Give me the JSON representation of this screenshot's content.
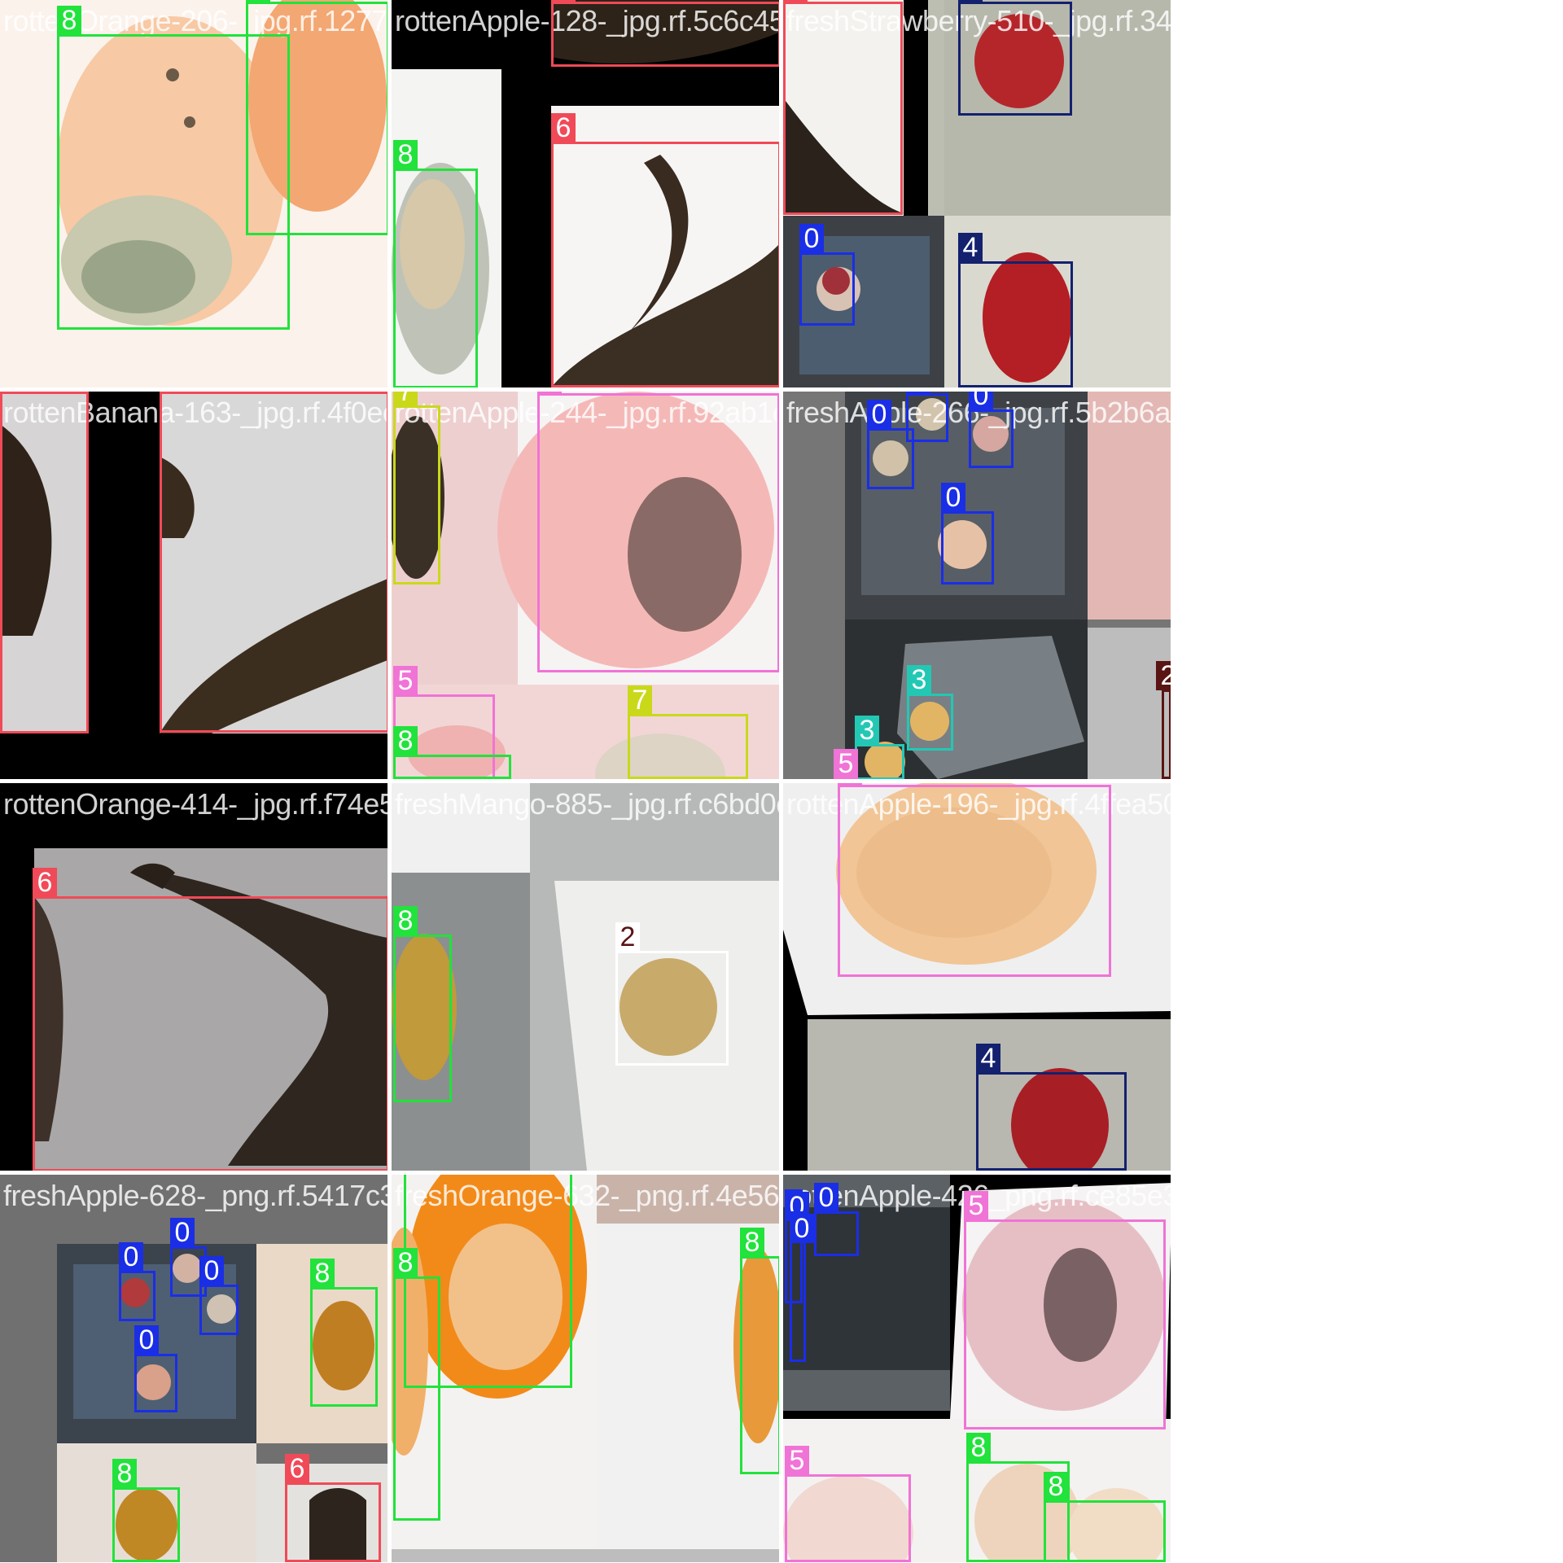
{
  "colors": {
    "class_0": "#1a2ee6",
    "class_2": "#5a1414",
    "class_3": "#22c8b4",
    "class_4": "#13216e",
    "class_5": "#f073d6",
    "class_6": "#f04a58",
    "class_7": "#c9d91a",
    "class_8": "#22e23c"
  },
  "tiles": [
    {
      "id": "t1",
      "filename": "rottenOrange-206-_jpg.rf.1277a715ea120",
      "labels": [
        "8",
        "8"
      ]
    },
    {
      "id": "t2",
      "filename": "rottenApple-128-_jpg.rf.5c6c45d485a3a3",
      "labels": [
        "6",
        "6",
        "8"
      ]
    },
    {
      "id": "t3",
      "filename": "freshStrawberry-510-_jpg.rf.343251063657",
      "labels": [
        "6",
        "4",
        "0",
        "4"
      ]
    },
    {
      "id": "t4",
      "filename": "rottenBanana-163-_jpg.rf.4f0ec98eb4e0a",
      "labels": [
        "6",
        "6"
      ]
    },
    {
      "id": "t5",
      "filename": "rottenApple-244-_jpg.rf.92ab1ee3e46b",
      "labels": [
        "7",
        "5",
        "5",
        "7",
        "8"
      ]
    },
    {
      "id": "t6",
      "filename": "freshApple-266-_jpg.rf.5b2b6adc87b",
      "labels": [
        "0",
        "0",
        "0",
        "0",
        "3",
        "3",
        "5",
        "2"
      ]
    },
    {
      "id": "t7",
      "filename": "rottenOrange-414-_jpg.rf.f74e5f5d6c1",
      "labels": [
        "6"
      ]
    },
    {
      "id": "t8",
      "filename": "freshMango-885-_jpg.rf.c6bd0cd7a78",
      "labels": [
        "8",
        "2"
      ]
    },
    {
      "id": "t9",
      "filename": "rottenApple-196-_jpg.rf.4ffea5093124d333",
      "labels": [
        "5",
        "4"
      ]
    },
    {
      "id": "t10",
      "filename": "freshApple-628-_png.rf.5417c3d6003a1b",
      "labels": [
        "0",
        "0",
        "0",
        "0",
        "8",
        "8",
        "6"
      ]
    },
    {
      "id": "t11",
      "filename": "freshOrange-632-_png.rf.4e56c4c3e68d",
      "labels": [
        "8",
        "8",
        "8"
      ]
    },
    {
      "id": "t12",
      "filename": "rottenApple-426_png.rf.ce85e307bb47d98bd",
      "labels": [
        "0",
        "0",
        "0",
        "5",
        "5",
        "8",
        "8"
      ]
    }
  ]
}
